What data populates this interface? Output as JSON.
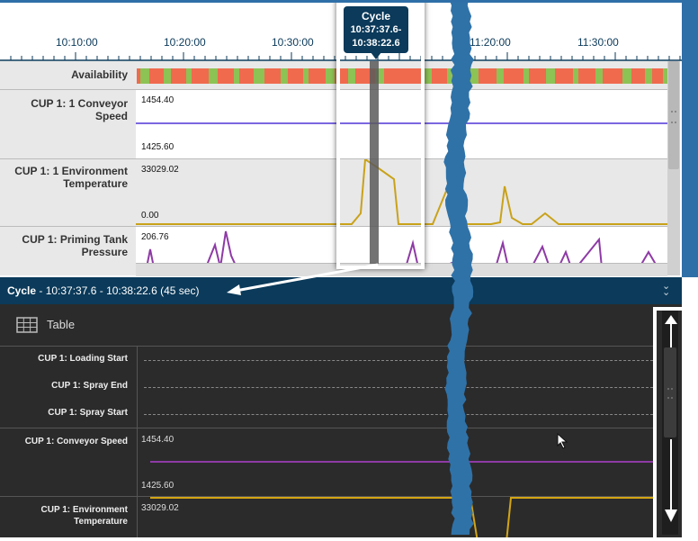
{
  "timeline": {
    "ticks": [
      "10:10:00",
      "10:20:00",
      "10:30:00",
      "11:20:00",
      "11:30:00"
    ]
  },
  "tooltip": {
    "title": "Cycle",
    "range_line1": "10:37:37.6-",
    "range_line2": "10:38:22.6"
  },
  "top_rows": [
    {
      "label": "Availability"
    },
    {
      "label": "CUP 1: 1 Conveyor Speed",
      "max": "1454.40",
      "min": "1425.60"
    },
    {
      "label": "CUP 1: 1 Environment Temperature",
      "max": "33029.02",
      "min": "0.00"
    },
    {
      "label": "CUP 1: Priming Tank Pressure",
      "max": "206.76"
    }
  ],
  "detail_header": {
    "title": "Cycle",
    "range": " - 10:37:37.6 - 10:38:22.6 (45 sec)"
  },
  "toolbar": {
    "table_label": "Table"
  },
  "detail_rows": [
    {
      "label": "CUP 1: Loading Start"
    },
    {
      "label": "CUP 1: Spray End"
    },
    {
      "label": "CUP 1: Spray Start"
    },
    {
      "label": "CUP 1: Conveyor Speed",
      "max": "1454.40",
      "min": "1425.60"
    },
    {
      "label": "CUP 1: Environment Temperature",
      "max": "33029.02"
    }
  ],
  "colors": {
    "header_blue": "#0b3a5a",
    "available_green": "#8dc255",
    "unavailable_red": "#f06a4e",
    "speed_purple": "#7b68e0",
    "temp_gold": "#c9a21a",
    "pressure_purple": "#8e3aa6"
  }
}
